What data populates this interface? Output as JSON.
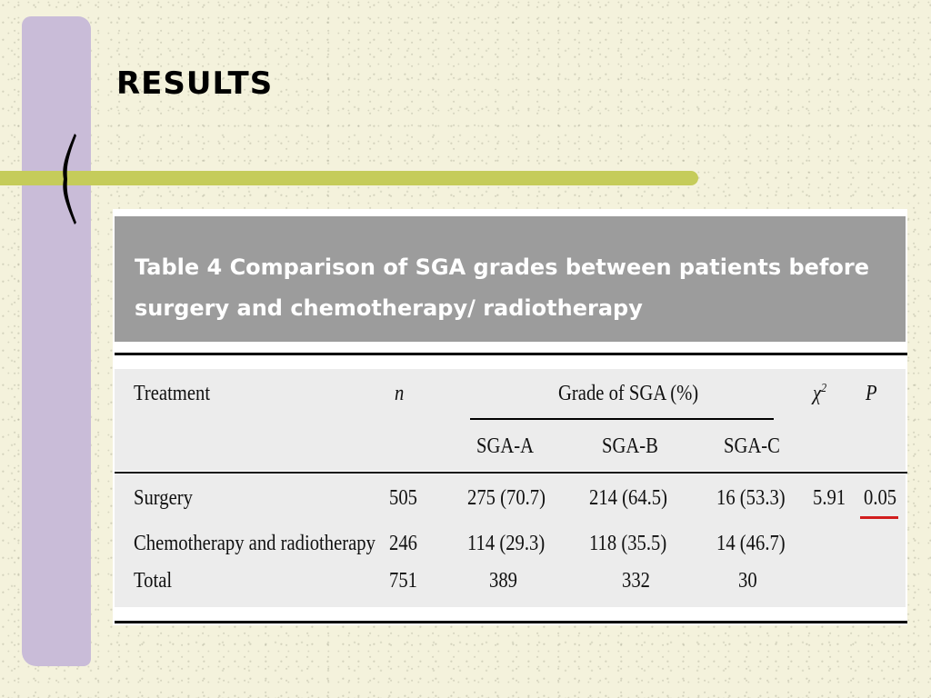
{
  "slide": {
    "title": "RESULTS",
    "colors": {
      "background": "#f4f2dc",
      "stripe": "#c9bcd8",
      "bar": "#c5cc5a",
      "caption_bg": "#9c9c9c",
      "highlight": "#d21e1e"
    }
  },
  "table": {
    "caption": "Table 4 Comparison of SGA grades between patients before surgery and chemotherapy/ radiotherapy",
    "headers": {
      "treatment": "Treatment",
      "n": "n",
      "group": "Grade of SGA (%)",
      "chi": "χ",
      "chi_sup": "2",
      "p": "P",
      "sga_a": "SGA-A",
      "sga_b": "SGA-B",
      "sga_c": "SGA-C"
    },
    "rows": [
      {
        "treatment": "Surgery",
        "n": "505",
        "sga_a": "275 (70.7)",
        "sga_b": "214 (64.5)",
        "sga_c": "16 (53.3)",
        "chi": "5.91",
        "p": "0.05"
      },
      {
        "treatment": "Chemotherapy and radiotherapy",
        "n": "246",
        "sga_a": "114 (29.3)",
        "sga_b": "118 (35.5)",
        "sga_c": "14 (46.7)",
        "chi": "",
        "p": ""
      },
      {
        "treatment": "Total",
        "n": "751",
        "sga_a": "389",
        "sga_b": "332",
        "sga_c": "30",
        "chi": "",
        "p": ""
      }
    ]
  }
}
